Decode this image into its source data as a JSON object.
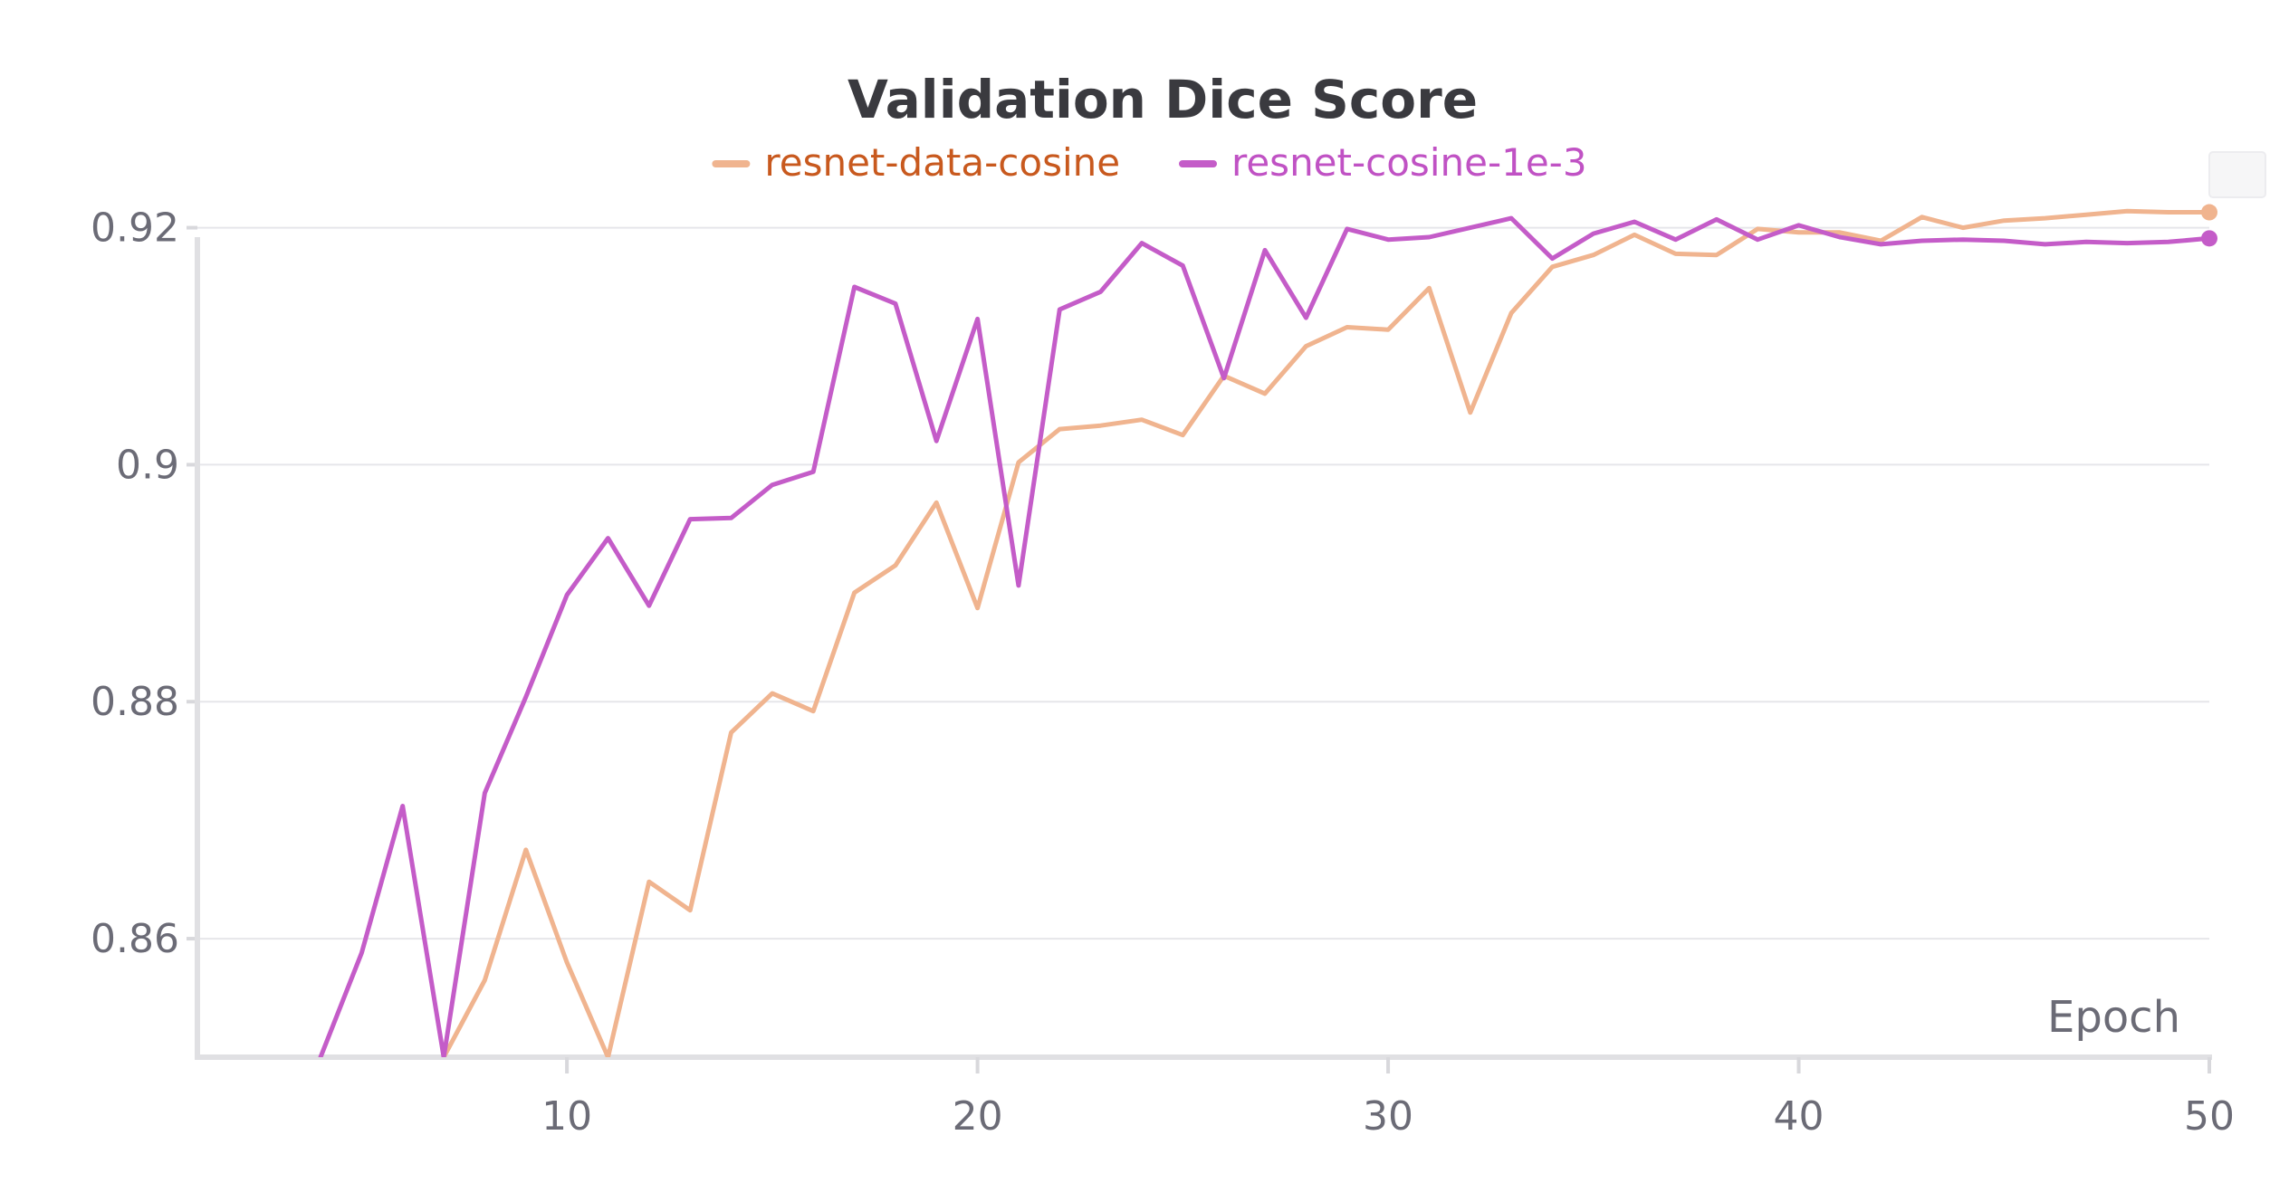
{
  "chart_data": {
    "type": "line",
    "title": "Validation Dice Score",
    "xlabel": "Epoch",
    "ylabel": "",
    "xlim": [
      1,
      50
    ],
    "ylim": [
      0.85,
      0.9218
    ],
    "xticks": [
      10,
      20,
      30,
      40,
      50
    ],
    "yticks": [
      0.86,
      0.88,
      0.9,
      0.92
    ],
    "ytick_labels": [
      "0.86",
      "0.88",
      "0.9",
      "0.92"
    ],
    "grid": true,
    "legend_position": "top-center",
    "series": [
      {
        "name": "resnet-data-cosine",
        "color": "#f0b48f",
        "text_color": "#c8591e",
        "x": [
          1,
          2,
          3,
          4,
          5,
          6,
          7,
          8,
          9,
          10,
          11,
          12,
          13,
          14,
          15,
          16,
          17,
          18,
          19,
          20,
          21,
          22,
          23,
          24,
          25,
          26,
          27,
          28,
          29,
          30,
          31,
          32,
          33,
          34,
          35,
          36,
          37,
          38,
          39,
          40,
          41,
          42,
          43,
          44,
          45,
          46,
          47,
          48,
          49,
          50
        ],
        "y": [
          null,
          null,
          null,
          null,
          null,
          null,
          0.85,
          0.8565,
          0.8675,
          0.858,
          0.85,
          0.8648,
          0.8624,
          0.8774,
          0.8807,
          0.8792,
          0.8892,
          0.8915,
          0.8968,
          0.8879,
          0.9002,
          0.903,
          0.9033,
          0.9038,
          0.9025,
          0.9075,
          0.906,
          0.91,
          0.9116,
          0.9114,
          0.9149,
          0.9044,
          0.9128,
          0.9167,
          0.9177,
          0.9194,
          0.9178,
          0.9177,
          0.9199,
          0.9196,
          0.9196,
          0.9189,
          0.9209,
          0.92,
          0.9206,
          0.9208,
          0.9211,
          0.9214,
          0.9213,
          0.9213
        ]
      },
      {
        "name": "resnet-cosine-1e-3",
        "color": "#c45cc8",
        "text_color": "#c052c4",
        "x": [
          1,
          2,
          3,
          4,
          5,
          6,
          7,
          8,
          9,
          10,
          11,
          12,
          13,
          14,
          15,
          16,
          17,
          18,
          19,
          20,
          21,
          22,
          23,
          24,
          25,
          26,
          27,
          28,
          29,
          30,
          31,
          32,
          33,
          34,
          35,
          36,
          37,
          38,
          39,
          40,
          41,
          42,
          43,
          44,
          45,
          46,
          47,
          48,
          49,
          50
        ],
        "y": [
          null,
          null,
          null,
          0.85,
          0.8588,
          0.8712,
          0.85,
          0.8723,
          0.8804,
          0.889,
          0.8938,
          0.8881,
          0.8954,
          0.8955,
          0.8983,
          0.8994,
          0.915,
          0.9136,
          0.902,
          0.9123,
          0.8898,
          0.9131,
          0.9146,
          0.9187,
          0.9168,
          0.9073,
          0.9181,
          0.9124,
          0.9199,
          0.919,
          0.9192,
          0.92,
          0.9208,
          0.9174,
          0.9195,
          0.9205,
          0.919,
          0.9207,
          0.919,
          0.9202,
          0.9192,
          0.9186,
          0.9189,
          0.919,
          0.9189,
          0.9186,
          0.9188,
          0.9187,
          0.9188,
          0.9191
        ]
      }
    ]
  }
}
